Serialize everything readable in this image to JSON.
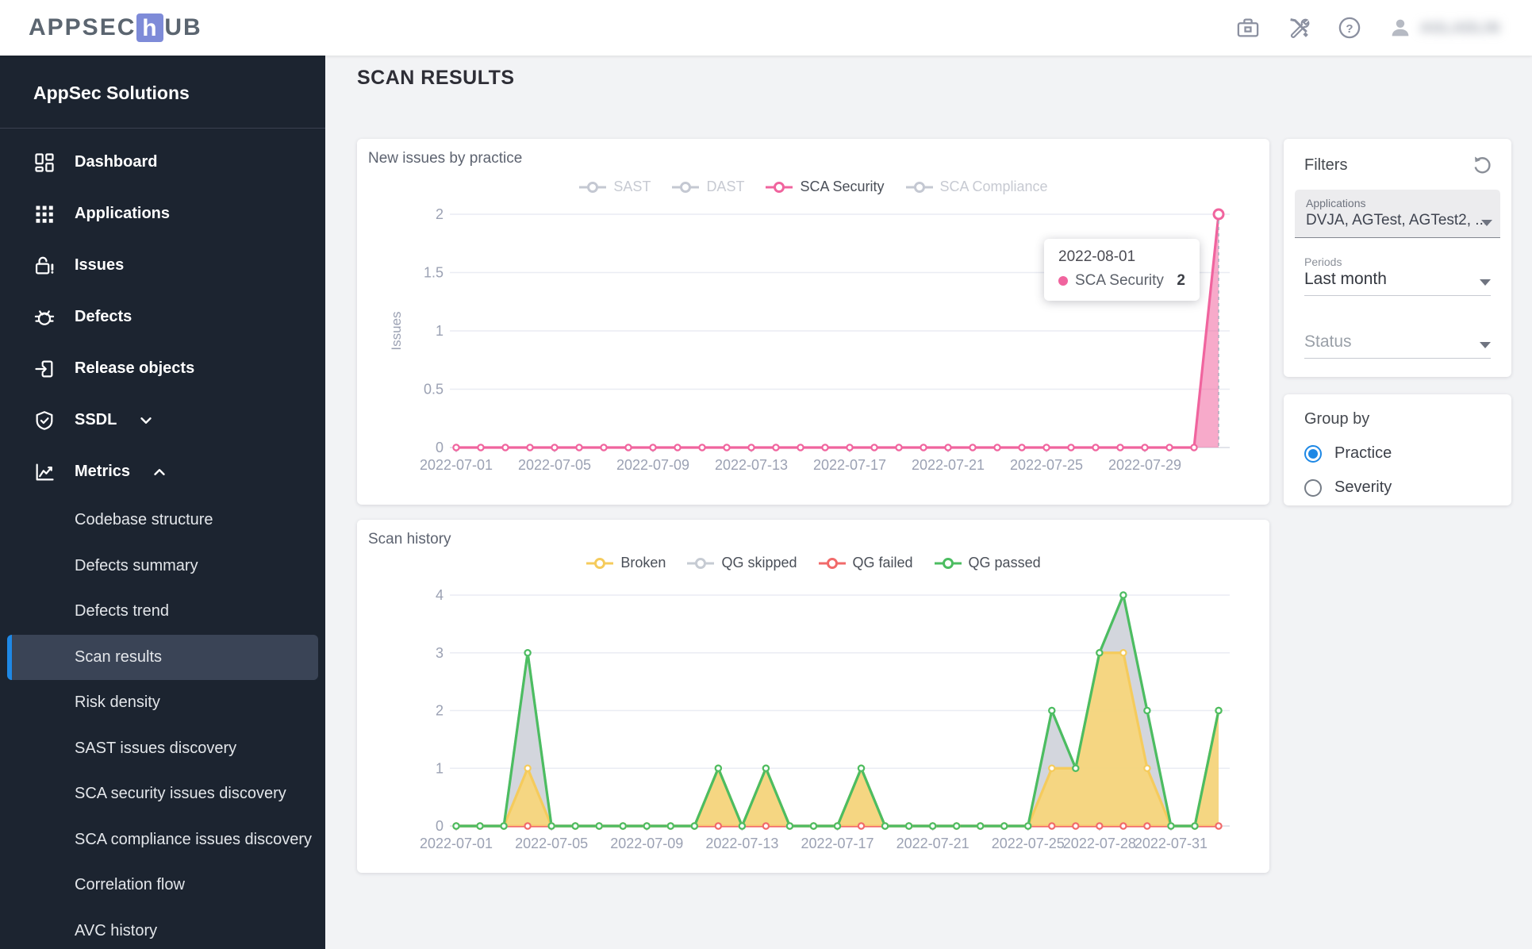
{
  "header": {
    "logo_prefix": "APPSEC",
    "logo_tile": "h",
    "logo_suffix": "UB",
    "user_name": "AGLADLIN"
  },
  "sidebar": {
    "title": "AppSec Solutions",
    "items": [
      {
        "label": "Dashboard",
        "icon": "dashboard-icon",
        "expand": null
      },
      {
        "label": "Applications",
        "icon": "apps-icon",
        "expand": null
      },
      {
        "label": "Issues",
        "icon": "unlock-alert-icon",
        "expand": null
      },
      {
        "label": "Defects",
        "icon": "bug-icon",
        "expand": null
      },
      {
        "label": "Release objects",
        "icon": "exit-box-icon",
        "expand": null
      },
      {
        "label": "SSDL",
        "icon": "shield-check-icon",
        "expand": "down"
      },
      {
        "label": "Metrics",
        "icon": "chart-line-icon",
        "expand": "up"
      }
    ],
    "metrics_items": [
      {
        "label": "Codebase structure",
        "active": false
      },
      {
        "label": "Defects summary",
        "active": false
      },
      {
        "label": "Defects trend",
        "active": false
      },
      {
        "label": "Scan results",
        "active": true
      },
      {
        "label": "Risk density",
        "active": false
      },
      {
        "label": "SAST issues discovery",
        "active": false
      },
      {
        "label": "SCA security issues discovery",
        "active": false
      },
      {
        "label": "SCA compliance issues discovery",
        "active": false
      },
      {
        "label": "Correlation flow",
        "active": false
      },
      {
        "label": "AVC history",
        "active": false
      }
    ]
  },
  "page": {
    "title": "SCAN RESULTS"
  },
  "filters": {
    "title": "Filters",
    "applications": {
      "label": "Applications",
      "value": "DVJA, AGTest, AGTest2, ..."
    },
    "periods": {
      "label": "Periods",
      "value": "Last month"
    },
    "status": {
      "placeholder": "Status"
    }
  },
  "group_by": {
    "title": "Group by",
    "options": [
      {
        "label": "Practice",
        "selected": true
      },
      {
        "label": "Severity",
        "selected": false
      }
    ]
  },
  "colors": {
    "accent_blue": "#1e88e5",
    "pink": "#f0649e",
    "green": "#4cbd61",
    "yellow": "#f5cb5c",
    "gray_series": "#c6cbd3",
    "red": "#f16a6a"
  },
  "chart_data": [
    {
      "type": "line",
      "title": "New issues by practice",
      "xlabel": "",
      "ylabel": "Issues",
      "ylim": [
        0,
        2
      ],
      "yticks": [
        0,
        0.5,
        1,
        1.5,
        2
      ],
      "x": [
        "2022-07-01",
        "2022-07-02",
        "2022-07-03",
        "2022-07-04",
        "2022-07-05",
        "2022-07-06",
        "2022-07-07",
        "2022-07-08",
        "2022-07-09",
        "2022-07-10",
        "2022-07-11",
        "2022-07-12",
        "2022-07-13",
        "2022-07-14",
        "2022-07-15",
        "2022-07-16",
        "2022-07-17",
        "2022-07-18",
        "2022-07-19",
        "2022-07-20",
        "2022-07-21",
        "2022-07-22",
        "2022-07-23",
        "2022-07-24",
        "2022-07-25",
        "2022-07-26",
        "2022-07-27",
        "2022-07-28",
        "2022-07-29",
        "2022-07-30",
        "2022-07-31",
        "2022-08-01"
      ],
      "xtick_indices": [
        0,
        4,
        8,
        12,
        16,
        20,
        24,
        28
      ],
      "xtick_labels": [
        "2022-07-01",
        "2022-07-05",
        "2022-07-09",
        "2022-07-13",
        "2022-07-17",
        "2022-07-21",
        "2022-07-25",
        "2022-07-29"
      ],
      "legend_position": "top",
      "grid": true,
      "series": [
        {
          "name": "SAST",
          "color": "#c4c8d2",
          "active": false,
          "values": null
        },
        {
          "name": "DAST",
          "color": "#c4c8d2",
          "active": false,
          "values": null
        },
        {
          "name": "SCA Security",
          "color": "#f0649e",
          "fill_color": "rgba(240,100,158,0.55)",
          "active": true,
          "values": [
            0,
            0,
            0,
            0,
            0,
            0,
            0,
            0,
            0,
            0,
            0,
            0,
            0,
            0,
            0,
            0,
            0,
            0,
            0,
            0,
            0,
            0,
            0,
            0,
            0,
            0,
            0,
            0,
            0,
            0,
            0,
            2
          ]
        },
        {
          "name": "SCA Compliance",
          "color": "#c4c8d2",
          "active": false,
          "values": null
        }
      ],
      "tooltip": {
        "date": "2022-08-01",
        "series": "SCA Security",
        "value": "2",
        "point_index": 31
      }
    },
    {
      "type": "area",
      "title": "Scan history",
      "xlabel": "",
      "ylabel": "",
      "ylim": [
        0,
        4
      ],
      "yticks": [
        0,
        1,
        2,
        3,
        4
      ],
      "x": [
        "2022-07-01",
        "2022-07-02",
        "2022-07-03",
        "2022-07-04",
        "2022-07-05",
        "2022-07-06",
        "2022-07-07",
        "2022-07-08",
        "2022-07-09",
        "2022-07-10",
        "2022-07-11",
        "2022-07-12",
        "2022-07-13",
        "2022-07-14",
        "2022-07-15",
        "2022-07-16",
        "2022-07-17",
        "2022-07-18",
        "2022-07-19",
        "2022-07-20",
        "2022-07-21",
        "2022-07-22",
        "2022-07-23",
        "2022-07-24",
        "2022-07-25",
        "2022-07-26",
        "2022-07-27",
        "2022-07-28",
        "2022-07-29",
        "2022-07-30",
        "2022-07-31",
        "2022-08-01",
        "2022-08-02"
      ],
      "xtick_indices": [
        0,
        4,
        8,
        12,
        16,
        20,
        24,
        27,
        30
      ],
      "xtick_labels": [
        "2022-07-01",
        "2022-07-05",
        "2022-07-09",
        "2022-07-13",
        "2022-07-17",
        "2022-07-21",
        "2022-07-25",
        "2022-07-28",
        "2022-07-31"
      ],
      "legend_position": "top",
      "grid": true,
      "series": [
        {
          "name": "Broken",
          "color": "#f5cb5c",
          "fill_color": "rgba(250,214,114,0.85)",
          "active": true,
          "values": [
            0,
            0,
            0,
            1,
            0,
            0,
            0,
            0,
            0,
            0,
            0,
            1,
            0,
            1,
            0,
            0,
            0,
            1,
            0,
            0,
            0,
            0,
            0,
            0,
            0,
            1,
            1,
            3,
            3,
            1,
            0,
            0,
            2
          ]
        },
        {
          "name": "QG skipped",
          "color": "#c6cbd3",
          "fill_color": "rgba(203,207,215,0.85)",
          "active": true,
          "values": [
            0,
            0,
            0,
            3,
            0,
            0,
            0,
            0,
            0,
            0,
            0,
            1,
            0,
            1,
            0,
            0,
            0,
            1,
            0,
            0,
            0,
            0,
            0,
            0,
            0,
            2,
            1,
            3,
            4,
            2,
            0,
            0,
            2
          ]
        },
        {
          "name": "QG failed",
          "color": "#f16a6a",
          "fill_color": null,
          "active": true,
          "values": [
            0,
            0,
            0,
            0,
            0,
            0,
            0,
            0,
            0,
            0,
            0,
            0,
            0,
            0,
            0,
            0,
            0,
            0,
            0,
            0,
            0,
            0,
            0,
            0,
            0,
            0,
            0,
            0,
            0,
            0,
            0,
            0,
            0
          ]
        },
        {
          "name": "QG passed",
          "color": "#4cbd61",
          "fill_color": null,
          "active": true,
          "values": [
            0,
            0,
            0,
            3,
            0,
            0,
            0,
            0,
            0,
            0,
            0,
            1,
            0,
            1,
            0,
            0,
            0,
            1,
            0,
            0,
            0,
            0,
            0,
            0,
            0,
            2,
            1,
            3,
            4,
            2,
            0,
            0,
            2
          ]
        }
      ],
      "draw_order": [
        1,
        2,
        0,
        3
      ]
    }
  ]
}
